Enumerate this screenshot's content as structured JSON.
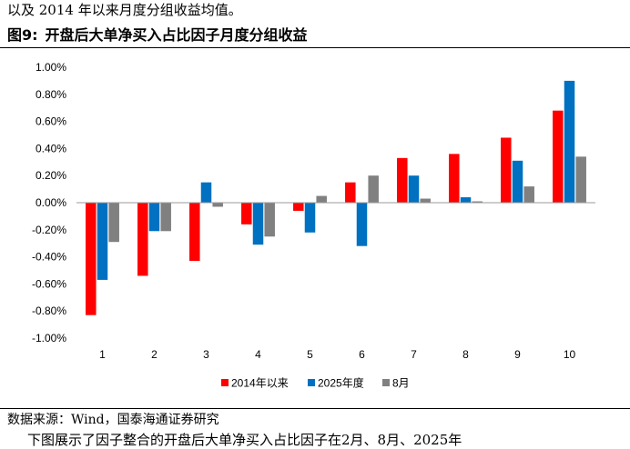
{
  "top_text": "以及 2014 年以来月度分组收益均值。",
  "figure": {
    "number": "图9:",
    "title": "开盘后大单净买入占比因子月度分组收益"
  },
  "source": "数据来源：Wind，国泰海通证券研究",
  "bottom_text": "下图展示了因子整合的开盘后大单净买入占比因子在2月、8月、2025年",
  "colors": {
    "series_1": "#FF0000",
    "series_2": "#0070C0",
    "series_3": "#808080"
  },
  "chart_data": {
    "type": "bar",
    "categories": [
      "1",
      "2",
      "3",
      "4",
      "5",
      "6",
      "7",
      "8",
      "9",
      "10"
    ],
    "series": [
      {
        "name": "2014年以来",
        "values": [
          -0.83,
          -0.54,
          -0.43,
          -0.16,
          -0.06,
          0.15,
          0.33,
          0.36,
          0.48,
          0.68
        ]
      },
      {
        "name": "2025年度",
        "values": [
          -0.57,
          -0.21,
          0.15,
          -0.31,
          -0.22,
          -0.32,
          0.2,
          0.04,
          0.31,
          0.9
        ]
      },
      {
        "name": "8月",
        "values": [
          -0.29,
          -0.21,
          -0.03,
          -0.25,
          0.05,
          0.2,
          0.03,
          0.01,
          0.12,
          0.34
        ]
      }
    ],
    "yticks": [
      "1.00%",
      "0.80%",
      "0.60%",
      "0.40%",
      "0.20%",
      "0.00%",
      "-0.20%",
      "-0.40%",
      "-0.60%",
      "-0.80%",
      "-1.00%"
    ],
    "ylim": [
      -1.0,
      1.0
    ],
    "grid": false,
    "legend_position": "bottom"
  }
}
